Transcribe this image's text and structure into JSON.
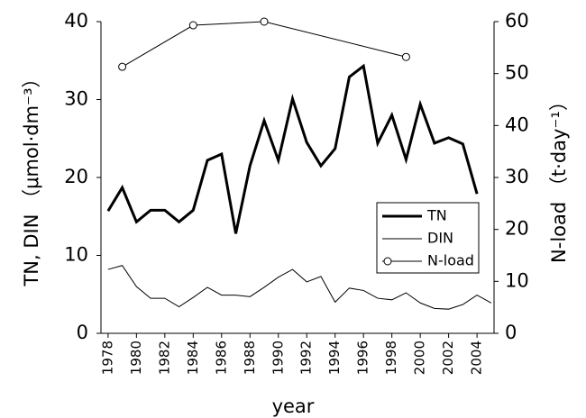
{
  "chart_data": {
    "type": "line",
    "xlabel": "year",
    "ylabel": "TN, DIN （μmol·dm⁻³）",
    "y2label": "N-load （t·day⁻¹）",
    "xlim": [
      1977.5,
      2005.2
    ],
    "xticks": [
      1978,
      1980,
      1982,
      1984,
      1986,
      1988,
      1990,
      1992,
      1994,
      1996,
      1998,
      2000,
      2002,
      2004
    ],
    "ylim": [
      0,
      40
    ],
    "yticks": [
      0,
      10,
      20,
      30,
      40
    ],
    "y2lim": [
      0,
      60
    ],
    "y2ticks": [
      0,
      10,
      20,
      30,
      40,
      50,
      60
    ],
    "series": [
      {
        "name": "TN",
        "color": "#000000",
        "linewidth": 3,
        "x": [
          1978,
          1979,
          1980,
          1981,
          1982,
          1983,
          1984,
          1985,
          1986,
          1987,
          1988,
          1989,
          1990,
          1991,
          1992,
          1993,
          1994,
          1995,
          1996,
          1997,
          1998,
          1999,
          2000,
          2001,
          2002,
          2003,
          2004
        ],
        "values": [
          15.7,
          18.7,
          14.3,
          15.8,
          15.8,
          14.3,
          15.8,
          22.2,
          23.0,
          12.8,
          21.5,
          27.3,
          22.2,
          30.1,
          24.5,
          21.5,
          23.7,
          32.9,
          34.3,
          24.4,
          28.0,
          22.3,
          29.4,
          24.4,
          25.1,
          24.3,
          17.9
        ]
      },
      {
        "name": "DIN",
        "color": "#000000",
        "linewidth": 1,
        "x": [
          1978,
          1979,
          1980,
          1981,
          1982,
          1983,
          1984,
          1985,
          1986,
          1987,
          1988,
          1989,
          1990,
          1991,
          1992,
          1993,
          1994,
          1995,
          1996,
          1997,
          1998,
          1999,
          2000,
          2001,
          2002,
          2003,
          2004,
          2005
        ],
        "values": [
          8.2,
          8.7,
          6.0,
          4.5,
          4.5,
          3.4,
          4.6,
          5.9,
          4.9,
          4.9,
          4.7,
          5.9,
          7.2,
          8.2,
          6.6,
          7.3,
          4.0,
          5.8,
          5.5,
          4.5,
          4.3,
          5.2,
          3.9,
          3.2,
          3.1,
          3.7,
          4.9,
          3.9
        ]
      },
      {
        "name": "N-load",
        "color": "#000000",
        "linewidth": 1,
        "marker": "o",
        "axis": "y2",
        "x": [
          1979,
          1984,
          1989,
          1999
        ],
        "values": [
          51.3,
          59.3,
          60.0,
          53.2
        ]
      }
    ]
  }
}
